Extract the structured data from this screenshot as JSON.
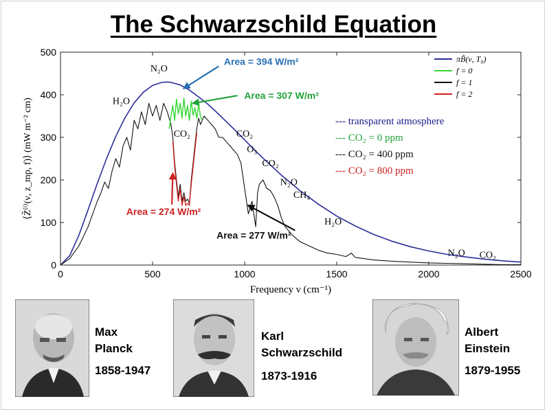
{
  "title": "The Schwarzschild Equation",
  "colors": {
    "planck": "#2b2b9a",
    "f0": "#33d633",
    "f1": "#111111",
    "f2": "#d42020",
    "area_blue": "#2a6fb4",
    "area_green": "#22a33a",
    "area_red": "#cc2020",
    "text_navy": "#1a1a8c"
  },
  "chart_data": {
    "type": "line",
    "xlabel": "Frequency ν (cm⁻¹)",
    "ylabel": "⟨Z̃⁽ⁱ⁾(ν, z_mp, f)⟩ (mW m⁻² cm)",
    "xlim": [
      0,
      2500
    ],
    "ylim": [
      0,
      500
    ],
    "xticks": [
      0,
      500,
      1000,
      1500,
      2000,
      2500
    ],
    "yticks": [
      0,
      100,
      200,
      300,
      400,
      500
    ],
    "grid": false,
    "legend_position": "top-right",
    "legend": [
      {
        "label": "πB̃(ν, T₀)",
        "color": "#2b2b9a"
      },
      {
        "label": "f = 0",
        "color": "#33d633"
      },
      {
        "label": "f = 1",
        "color": "#111111"
      },
      {
        "label": "f = 2",
        "color": "#d42020"
      }
    ],
    "series": [
      {
        "name": "πB̃(ν, T₀)",
        "x": [
          0,
          50,
          100,
          150,
          200,
          250,
          300,
          350,
          400,
          450,
          500,
          550,
          580,
          600,
          650,
          700,
          750,
          800,
          850,
          900,
          950,
          1000,
          1050,
          1100,
          1150,
          1200,
          1300,
          1400,
          1500,
          1600,
          1700,
          1800,
          1900,
          2000,
          2100,
          2200,
          2300,
          2400,
          2500
        ],
        "y": [
          0,
          22,
          70,
          130,
          192,
          250,
          302,
          346,
          381,
          406,
          422,
          429,
          430,
          429,
          423,
          411,
          395,
          378,
          358,
          337,
          316,
          294,
          272,
          251,
          231,
          211,
          175,
          143,
          115,
          92,
          72,
          56,
          43,
          33,
          25,
          19,
          14,
          10,
          7
        ]
      },
      {
        "name": "f = 0",
        "x": [
          590,
          600,
          610,
          620,
          630,
          640,
          650,
          660,
          670,
          680,
          690,
          700,
          710,
          720,
          730,
          740,
          750,
          760,
          770
        ],
        "y": [
          320,
          350,
          375,
          340,
          390,
          355,
          380,
          345,
          392,
          350,
          375,
          340,
          385,
          352,
          370,
          345,
          378,
          350,
          340
        ]
      },
      {
        "name": "f = 1",
        "x": [
          0,
          50,
          100,
          150,
          200,
          220,
          240,
          260,
          280,
          300,
          320,
          340,
          360,
          380,
          400,
          420,
          440,
          460,
          480,
          500,
          520,
          540,
          560,
          580,
          600,
          610,
          620,
          630,
          640,
          650,
          660,
          670,
          680,
          690,
          700,
          710,
          720,
          730,
          740,
          750,
          760,
          780,
          800,
          820,
          840,
          860,
          880,
          900,
          920,
          940,
          960,
          980,
          1000,
          1020,
          1040,
          1060,
          1070,
          1080,
          1100,
          1120,
          1140,
          1160,
          1180,
          1200,
          1220,
          1240,
          1260,
          1300,
          1350,
          1400,
          1450,
          1500,
          1550,
          1580,
          1600,
          1650,
          1700,
          1800,
          1900,
          2000,
          2100,
          2200,
          2300,
          2400,
          2500
        ],
        "y": [
          0,
          15,
          45,
          90,
          150,
          170,
          195,
          180,
          220,
          250,
          230,
          280,
          300,
          270,
          340,
          320,
          360,
          330,
          380,
          350,
          375,
          340,
          380,
          360,
          330,
          300,
          240,
          200,
          160,
          190,
          150,
          170,
          150,
          155,
          145,
          200,
          240,
          280,
          320,
          345,
          330,
          350,
          340,
          330,
          320,
          300,
          300,
          290,
          280,
          270,
          260,
          240,
          180,
          120,
          150,
          90,
          170,
          190,
          200,
          180,
          175,
          160,
          140,
          110,
          90,
          80,
          70,
          55,
          45,
          35,
          28,
          25,
          20,
          28,
          18,
          15,
          12,
          9,
          7,
          5,
          4,
          3,
          2,
          1,
          1
        ]
      },
      {
        "name": "f = 2",
        "x": [
          610,
          620,
          630,
          640,
          650,
          660,
          670,
          680,
          690,
          700,
          710,
          720,
          730,
          740
        ],
        "y": [
          290,
          230,
          190,
          150,
          180,
          140,
          160,
          140,
          145,
          140,
          190,
          230,
          270,
          310
        ]
      }
    ],
    "molecule_labels": [
      {
        "text": "N₂O",
        "x": 535,
        "y": 455
      },
      {
        "text": "H₂O",
        "x": 330,
        "y": 378
      },
      {
        "text": "CO₂",
        "x": 660,
        "y": 302
      },
      {
        "text": "CO₂",
        "x": 1000,
        "y": 302
      },
      {
        "text": "O₃",
        "x": 1040,
        "y": 265
      },
      {
        "text": "CO₂",
        "x": 1140,
        "y": 232
      },
      {
        "text": "N₂O",
        "x": 1240,
        "y": 188
      },
      {
        "text": "CH₄",
        "x": 1310,
        "y": 158
      },
      {
        "text": "H₂O",
        "x": 1480,
        "y": 95
      },
      {
        "text": "N₂O",
        "x": 2150,
        "y": 22
      },
      {
        "text": "CO₂",
        "x": 2320,
        "y": 17
      }
    ],
    "annotations": [
      {
        "text": "Area = 394 W/m²",
        "x": 1090,
        "y": 470,
        "arrow_to": [
          670,
          415
        ],
        "color": "#2a6fb4"
      },
      {
        "text": "Area = 307 W/m²",
        "x": 1200,
        "y": 390,
        "arrow_to": [
          720,
          380
        ],
        "color": "#22a33a"
      },
      {
        "text": "Area = 274 W/m²",
        "x": 560,
        "y": 118,
        "arrow_to": [
          610,
          215
        ],
        "color": "#cc2020"
      },
      {
        "text": "Area = 277 W/m²",
        "x": 1050,
        "y": 62,
        "arrow_to": [
          1020,
          140
        ],
        "color": "#111111"
      }
    ],
    "atmosphere_legend": [
      {
        "text": "--- transparent atmosphere",
        "color": "#1a1a8c"
      },
      {
        "text": "--- CO₂ = 0 ppm",
        "color": "#22a33a"
      },
      {
        "text": "--- CO₂ = 400 ppm",
        "color": "#111111"
      },
      {
        "text": "--- CO₂ = 800 ppm",
        "color": "#cc2020"
      }
    ]
  },
  "people": [
    {
      "name_line1": "Max",
      "name_line2": "Planck",
      "years": "1858-1947"
    },
    {
      "name_line1": "Karl",
      "name_line2": "Schwarzschild",
      "years": "1873-1916"
    },
    {
      "name_line1": "Albert",
      "name_line2": "Einstein",
      "years": "1879-1955"
    }
  ]
}
